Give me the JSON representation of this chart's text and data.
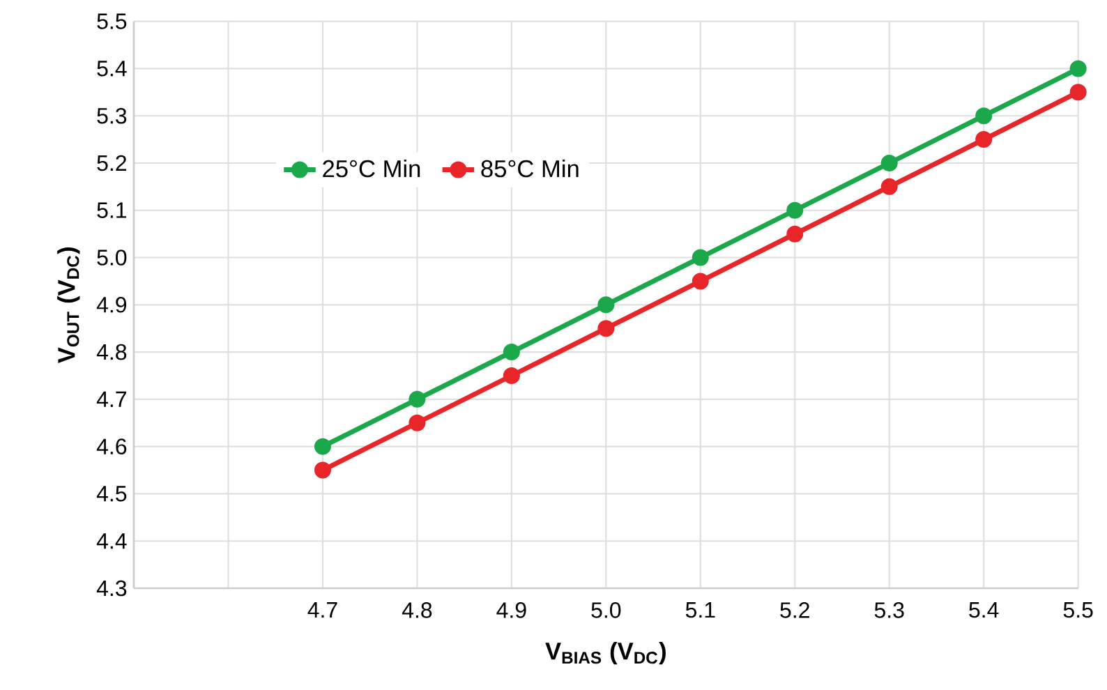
{
  "chart_data": {
    "type": "line",
    "xlabel": "**V$_{BIAS}$ (V$_{DC}$)**",
    "ylabel": "**V$_{OUT}$ (V$_{DC}$)**",
    "x": [
      4.7,
      4.8,
      4.9,
      5.0,
      5.1,
      5.2,
      5.3,
      5.4,
      5.5
    ],
    "series": [
      {
        "name": "25°C Min",
        "color": "#1aa84a",
        "values": [
          4.6,
          4.7,
          4.8,
          4.9,
          5.0,
          5.1,
          5.2,
          5.3,
          5.4
        ]
      },
      {
        "name": "85°C Min",
        "color": "#e8262a",
        "values": [
          4.55,
          4.65,
          4.75,
          4.85,
          4.95,
          5.05,
          5.15,
          5.25,
          5.35
        ]
      }
    ],
    "xlim": [
      4.5,
      5.5
    ],
    "xticks": [
      {
        "value": 4.5,
        "label": null
      },
      {
        "value": 4.6,
        "label": null
      },
      {
        "value": 4.7,
        "label": "4.7"
      },
      {
        "value": 4.8,
        "label": "4.8"
      },
      {
        "value": 4.9,
        "label": "4.9"
      },
      {
        "value": 5.0,
        "label": "5.0"
      },
      {
        "value": 5.1,
        "label": "5.1"
      },
      {
        "value": 5.2,
        "label": "5.2"
      },
      {
        "value": 5.3,
        "label": "5.3"
      },
      {
        "value": 5.4,
        "label": "5.4"
      },
      {
        "value": 5.5,
        "label": "5.5"
      }
    ],
    "ylim": [
      4.3,
      5.5
    ],
    "yticks": [
      {
        "value": 4.3,
        "label": "4.3"
      },
      {
        "value": 4.4,
        "label": "4.4"
      },
      {
        "value": 4.5,
        "label": "4.5"
      },
      {
        "value": 4.6,
        "label": "4.6"
      },
      {
        "value": 4.7,
        "label": "4.7"
      },
      {
        "value": 4.8,
        "label": "4.8"
      },
      {
        "value": 4.9,
        "label": "4.9"
      },
      {
        "value": 5.0,
        "label": "5.0"
      },
      {
        "value": 5.1,
        "label": "5.1"
      },
      {
        "value": 5.2,
        "label": "5.2"
      },
      {
        "value": 5.3,
        "label": "5.3"
      },
      {
        "value": 5.4,
        "label": "5.4"
      },
      {
        "value": 5.5,
        "label": "5.5"
      }
    ],
    "grid": true,
    "legend": "top left",
    "marker": "circle",
    "line_style": "solid"
  }
}
